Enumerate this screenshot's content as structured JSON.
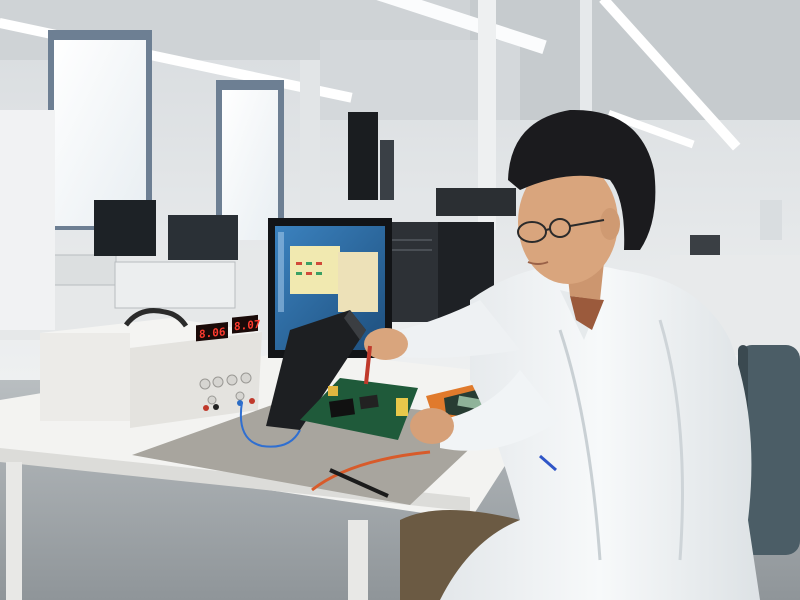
{
  "scene": {
    "type": "photo",
    "subject": "lab-technician-testing-circuit-board"
  },
  "power_supply": {
    "left_display": "8.06",
    "right_display": "8.07",
    "display_color": "#ff3b2f"
  },
  "palette": {
    "wall": "#e9ecee",
    "floor": "#9aa0a4",
    "desk_top": "#f3f3f1",
    "mat": "#a8a59e",
    "coat": "#f4f6f8",
    "hair": "#1b1b1e",
    "skin": "#d9a57d",
    "pcb": "#1f5a3a",
    "multimeter": "#e07a2c",
    "monitor_screen": "#2c6fa8",
    "chair": "#4b5d66"
  }
}
